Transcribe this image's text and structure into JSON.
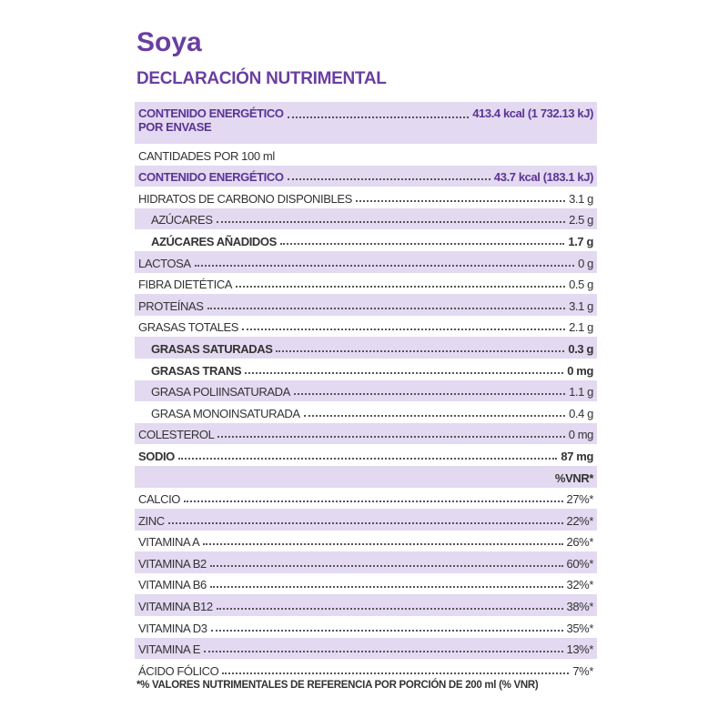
{
  "header": {
    "title": "Soya",
    "subtitle": "DECLARACIÓN NUTRIMENTAL"
  },
  "rows": [
    {
      "label": "CONTENIDO ENERGÉTICO",
      "label2": "POR ENVASE",
      "value": "413.4 kcal (1 732.13 kJ)",
      "accent": true
    },
    {
      "label": "CANTIDADES POR 100 ml"
    },
    {
      "label": "CONTENIDO ENERGÉTICO",
      "value": "43.7 kcal (183.1 kJ)",
      "accent": true
    },
    {
      "label": "HIDRATOS DE CARBONO DISPONIBLES",
      "value": "3.1 g"
    },
    {
      "label": "AZÚCARES",
      "value": "2.5 g",
      "indent": true
    },
    {
      "label": "AZÚCARES AÑADIDOS",
      "value": "1.7 g",
      "indent": true,
      "bold": true
    },
    {
      "label": "LACTOSA",
      "value": "0 g"
    },
    {
      "label": "FIBRA DIETÉTICA",
      "value": "0.5 g"
    },
    {
      "label": "PROTEÍNAS",
      "value": "3.1 g"
    },
    {
      "label": "GRASAS TOTALES",
      "value": "2.1 g"
    },
    {
      "label": "GRASAS SATURADAS",
      "value": "0.3 g",
      "indent": true,
      "bold": true
    },
    {
      "label": "GRASAS TRANS",
      "value": "0 mg",
      "indent": true,
      "bold": true
    },
    {
      "label": "GRASA POLIINSATURADA",
      "value": "1.1 g",
      "indent": true
    },
    {
      "label": "GRASA MONOINSATURADA",
      "value": "0.4 g",
      "indent": true
    },
    {
      "label": "COLESTEROL",
      "value": "0 mg"
    },
    {
      "label": "SODIO",
      "value": "87 mg",
      "bold": true
    },
    {
      "value": "%VNR*",
      "bold": true
    },
    {
      "label": "CALCIO",
      "value": "27%*"
    },
    {
      "label": "ZINC",
      "value": "22%*"
    },
    {
      "label": "VITAMINA A",
      "value": "26%*"
    },
    {
      "label": "VITAMINA B2",
      "value": "60%*"
    },
    {
      "label": "VITAMINA B6",
      "value": "32%*"
    },
    {
      "label": "VITAMINA B12",
      "value": "38%*"
    },
    {
      "label": "VITAMINA D3",
      "value": "35%*"
    },
    {
      "label": "VITAMINA E",
      "value": "13%*"
    },
    {
      "label": "ÁCIDO FÓLICO",
      "value": "7%*"
    }
  ],
  "footnote": "*% VALORES NUTRIMENTALES DE REFERENCIA POR PORCIÓN DE 200 ml (% VNR)"
}
